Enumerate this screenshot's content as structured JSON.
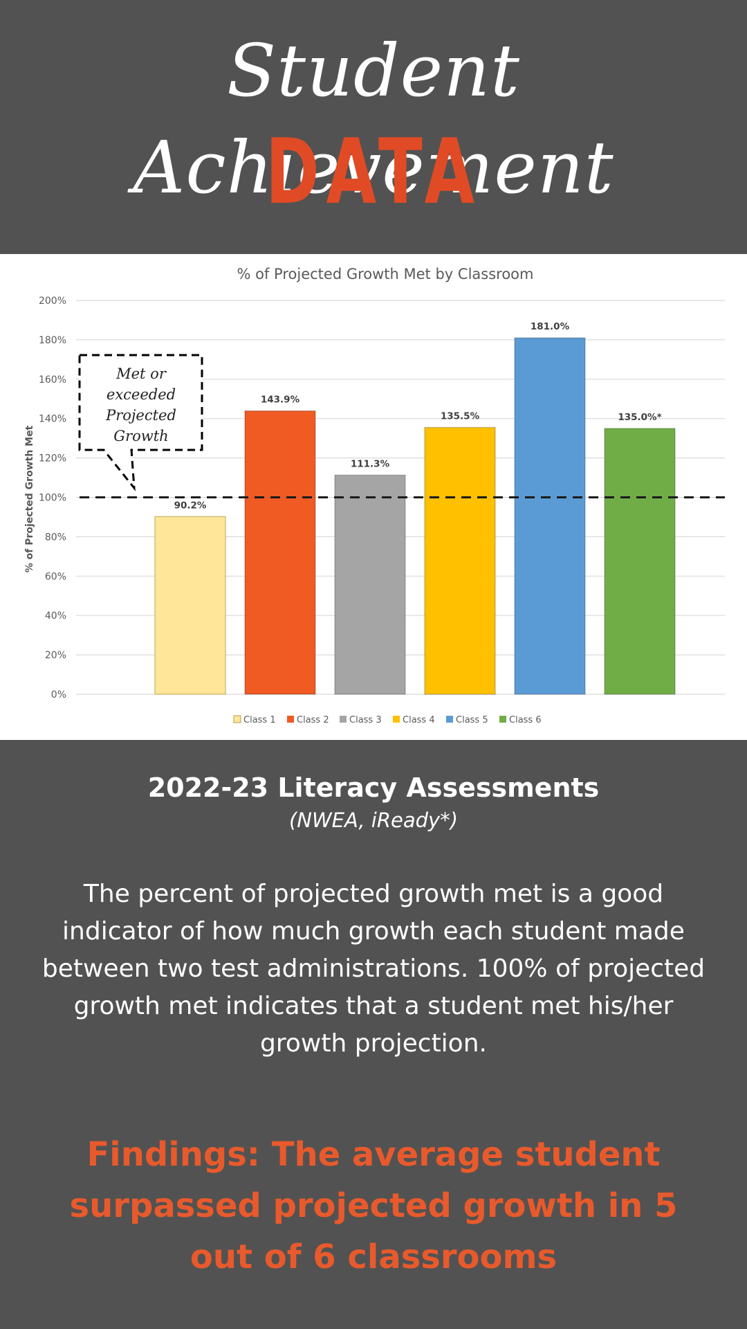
{
  "header": {
    "script_title": "Student Achievement",
    "title": "DATA"
  },
  "chart_data": {
    "type": "bar",
    "title": "% of Projected Growth Met by Classroom",
    "ylabel": "% of Projected Growth Met",
    "xlabel": "",
    "ylim": [
      0,
      200
    ],
    "yticks": [
      "0%",
      "20%",
      "40%",
      "60%",
      "80%",
      "100%",
      "120%",
      "140%",
      "160%",
      "180%",
      "200%"
    ],
    "categories": [
      "Class 1",
      "Class 2",
      "Class 3",
      "Class 4",
      "Class 5",
      "Class 6"
    ],
    "values": [
      90.2,
      143.9,
      111.3,
      135.5,
      181.0,
      135.0
    ],
    "value_labels": [
      "90.2%",
      "143.9%",
      "111.3%",
      "135.5%",
      "181.0%",
      "135.0%*"
    ],
    "colors": [
      "#ffe699",
      "#f05a23",
      "#a5a5a5",
      "#ffc000",
      "#5b9bd5",
      "#70ad47"
    ],
    "reference_line": 100,
    "annotation": [
      "Met or",
      "exceeded",
      "Projected",
      "Growth"
    ],
    "legend_position": "bottom",
    "grid": true
  },
  "section": {
    "title": "2022-23 Literacy Assessments",
    "note": "(NWEA, iReady*)",
    "description": "The percent of projected growth met is a good indicator of how much growth each student made between two test administrations. 100% of projected growth met indicates that a student met his/her growth projection.",
    "findings": "Findings: The average student surpassed projected growth in 5 out of 6 classrooms"
  }
}
